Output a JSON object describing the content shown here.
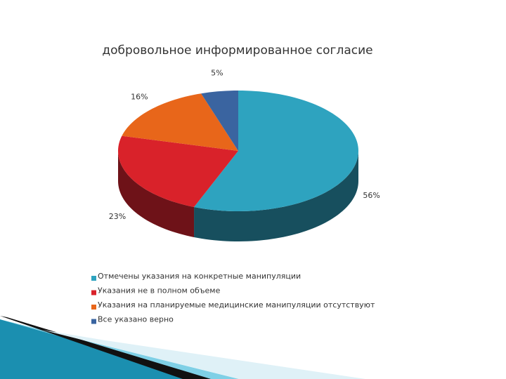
{
  "chart_data": {
    "type": "pie3d",
    "title": "добровольное информированное согласие",
    "categories": [
      "Отмечены указания на конкретные манипуляции",
      "Указания не в полном объеме",
      "Указания на планируемые медицинские манипуляции отсутствуют",
      "Все указано верно"
    ],
    "values": [
      56,
      23,
      16,
      5
    ],
    "value_labels": [
      "56%",
      "23%",
      "16%",
      "5%"
    ],
    "colors": [
      "#2ea3bf",
      "#d9222a",
      "#e8661a",
      "#3a64a0"
    ],
    "side_colors": [
      "#174f5e",
      "#6e1218",
      "#7a340c",
      "#1e3458"
    ]
  }
}
